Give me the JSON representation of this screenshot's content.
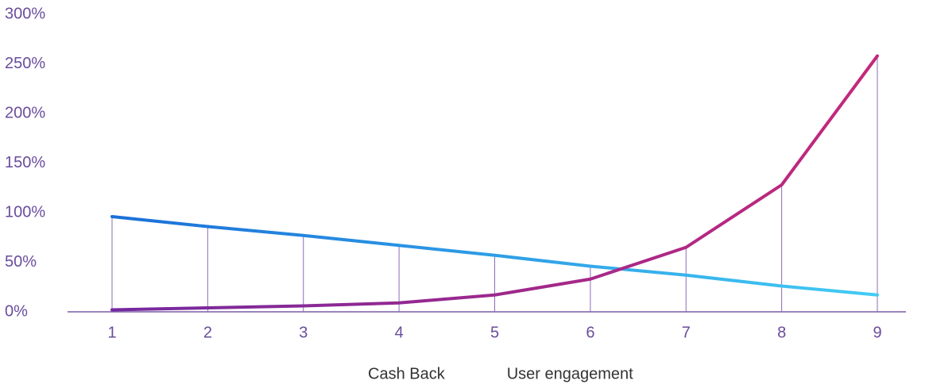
{
  "chart_data": {
    "type": "line",
    "categories": [
      "1",
      "2",
      "3",
      "4",
      "5",
      "6",
      "7",
      "8",
      "9"
    ],
    "series": [
      {
        "name": "Cash Back",
        "color": [
          "#1a6fd8",
          "#42cbf4"
        ],
        "values": [
          96,
          86,
          77,
          67,
          57,
          46,
          37,
          26,
          17
        ]
      },
      {
        "name": "User engagement",
        "color": [
          "#74299f",
          "#c5287b"
        ],
        "values": [
          2,
          4,
          6,
          9,
          17,
          33,
          65,
          128,
          258
        ]
      }
    ],
    "ylim": [
      0,
      300
    ],
    "yticks": [
      {
        "value": 0,
        "label": "0%"
      },
      {
        "value": 50,
        "label": "50%"
      },
      {
        "value": 100,
        "label": "100%"
      },
      {
        "value": 150,
        "label": "150%"
      },
      {
        "value": 200,
        "label": "200%"
      },
      {
        "value": 250,
        "label": "250%"
      },
      {
        "value": 300,
        "label": "300%"
      }
    ],
    "legend": "bottom"
  }
}
